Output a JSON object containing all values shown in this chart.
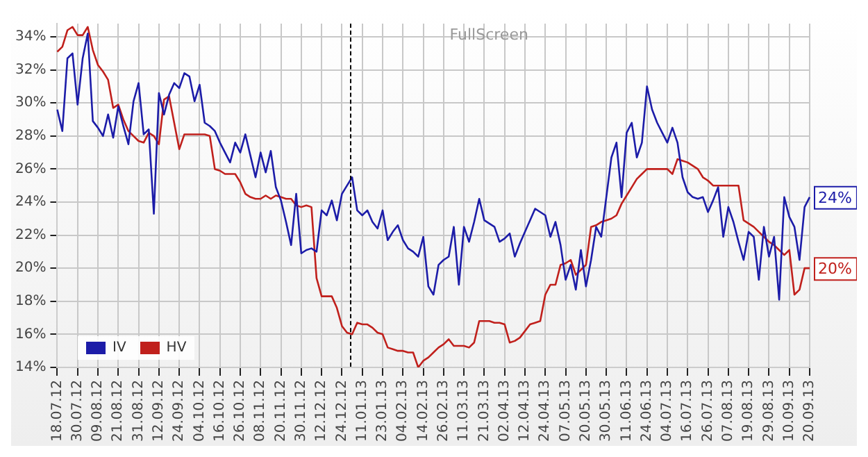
{
  "chart_data": {
    "type": "line",
    "categories": [
      "18.07.12",
      null,
      null,
      null,
      "30.07.12",
      null,
      null,
      null,
      "09.08.12",
      null,
      null,
      null,
      "21.08.12",
      null,
      null,
      null,
      "31.08.12",
      null,
      null,
      null,
      "12.09.12",
      null,
      null,
      null,
      "24.09.12",
      null,
      null,
      null,
      "04.10.12",
      null,
      null,
      null,
      "16.10.12",
      null,
      null,
      null,
      "26.10.12",
      null,
      null,
      null,
      "08.11.12",
      null,
      null,
      null,
      "20.11.12",
      null,
      null,
      null,
      "30.11.12",
      null,
      null,
      null,
      "12.12.12",
      null,
      null,
      null,
      "24.12.12",
      null,
      null,
      null,
      "11.01.13",
      null,
      null,
      null,
      "23.01.13",
      null,
      null,
      null,
      "04.02.13",
      null,
      null,
      null,
      "14.02.13",
      null,
      null,
      null,
      "26.02.13",
      null,
      null,
      null,
      "11.03.13",
      null,
      null,
      null,
      "21.03.13",
      null,
      null,
      null,
      "02.04.13",
      null,
      null,
      null,
      "12.04.13",
      null,
      null,
      null,
      "24.04.13",
      null,
      null,
      null,
      "07.05.13",
      null,
      null,
      null,
      "20.05.13",
      null,
      null,
      null,
      "30.05.13",
      null,
      null,
      null,
      "11.06.13",
      null,
      null,
      null,
      "24.06.13",
      null,
      null,
      null,
      "04.07.13",
      null,
      null,
      null,
      "16.07.13",
      null,
      null,
      null,
      "26.07.13",
      null,
      null,
      null,
      "07.08.13",
      null,
      null,
      null,
      "19.08.13",
      null,
      null,
      null,
      "29.08.13",
      null,
      null,
      null,
      "10.09.13",
      null,
      null,
      null,
      "20.09.13"
    ],
    "ylim": [
      14,
      34.8
    ],
    "yticks": [
      {
        "value": 14,
        "label": "14%"
      },
      {
        "value": 16,
        "label": "16%"
      },
      {
        "value": 18,
        "label": "18%"
      },
      {
        "value": 20,
        "label": "20%"
      },
      {
        "value": 22,
        "label": "22%"
      },
      {
        "value": 24,
        "label": "24%"
      },
      {
        "value": 26,
        "label": "26%"
      },
      {
        "value": 28,
        "label": "28%"
      },
      {
        "value": 30,
        "label": "30%"
      },
      {
        "value": 32,
        "label": "32%"
      },
      {
        "value": 34,
        "label": "34%"
      }
    ],
    "grid": true,
    "legend": "bottom left",
    "marker": "none",
    "line_style": "solid",
    "annotations": [
      "FullScreen",
      {
        "text": "24%",
        "x": "20.09.13",
        "y": 24.3
      },
      {
        "text": "20%",
        "x": "20.09.13",
        "y": 20.0
      }
    ],
    "series": [
      {
        "name": "IV",
        "color": "#1c1ca8",
        "values": [
          29.6,
          28.3,
          32.7,
          33.0,
          29.9,
          32.7,
          34.2,
          28.9,
          28.5,
          28.0,
          29.3,
          27.9,
          29.8,
          28.6,
          27.5,
          30.1,
          31.2,
          28.1,
          28.4,
          23.3,
          30.6,
          29.3,
          30.5,
          31.2,
          30.9,
          31.8,
          31.6,
          30.1,
          31.1,
          28.8,
          28.6,
          28.3,
          27.6,
          27.0,
          26.4,
          27.6,
          27.0,
          28.1,
          26.8,
          25.5,
          27.0,
          25.8,
          27.1,
          24.9,
          24.1,
          22.8,
          21.4,
          24.5,
          20.9,
          21.1,
          21.2,
          21.0,
          23.5,
          23.2,
          24.1,
          22.9,
          24.5,
          25.0,
          25.5,
          23.5,
          23.2,
          23.5,
          22.8,
          22.4,
          23.5,
          21.7,
          22.2,
          22.6,
          21.7,
          21.2,
          21.0,
          20.7,
          21.9,
          18.9,
          18.4,
          20.2,
          20.5,
          20.7,
          22.5,
          19.0,
          22.5,
          21.6,
          22.8,
          24.2,
          22.9,
          22.7,
          22.5,
          21.6,
          21.8,
          22.1,
          20.7,
          21.5,
          22.2,
          22.9,
          23.6,
          23.4,
          23.2,
          21.9,
          22.8,
          21.4,
          19.3,
          20.2,
          18.7,
          21.1,
          18.9,
          20.5,
          22.5,
          21.9,
          24.3,
          26.7,
          27.6,
          24.3,
          28.2,
          28.8,
          26.7,
          27.6,
          31.0,
          29.6,
          28.8,
          28.2,
          27.6,
          28.5,
          27.6,
          25.5,
          24.6,
          24.3,
          24.2,
          24.3,
          23.4,
          24.1,
          24.9,
          21.9,
          23.7,
          22.8,
          21.6,
          20.5,
          22.2,
          21.9,
          19.3,
          22.5,
          20.7,
          21.9,
          18.1,
          24.3,
          23.1,
          22.5,
          20.5,
          23.7,
          24.3
        ]
      },
      {
        "name": "HV",
        "color": "#c0201c",
        "values": [
          33.1,
          33.4,
          34.4,
          34.6,
          34.1,
          34.1,
          34.6,
          33.2,
          32.3,
          31.9,
          31.4,
          29.7,
          29.9,
          29.0,
          28.3,
          28.0,
          27.7,
          27.6,
          28.2,
          28.0,
          27.5,
          30.2,
          30.4,
          28.8,
          27.2,
          28.1,
          28.1,
          28.1,
          28.1,
          28.1,
          28.0,
          26.0,
          25.9,
          25.7,
          25.7,
          25.7,
          25.2,
          24.5,
          24.3,
          24.2,
          24.2,
          24.4,
          24.2,
          24.4,
          24.3,
          24.2,
          24.2,
          23.8,
          23.7,
          23.8,
          23.7,
          19.4,
          18.3,
          18.3,
          18.3,
          17.6,
          16.5,
          16.1,
          16.0,
          16.7,
          16.6,
          16.6,
          16.4,
          16.1,
          16.0,
          15.2,
          15.1,
          15.0,
          15.0,
          14.9,
          14.9,
          14.0,
          14.4,
          14.6,
          14.9,
          15.2,
          15.4,
          15.7,
          15.3,
          15.3,
          15.3,
          15.2,
          15.5,
          16.8,
          16.8,
          16.8,
          16.7,
          16.7,
          16.6,
          15.5,
          15.6,
          15.8,
          16.2,
          16.6,
          16.7,
          16.8,
          18.4,
          19.0,
          19.0,
          20.2,
          20.3,
          20.5,
          19.6,
          19.9,
          20.2,
          22.5,
          22.6,
          22.8,
          22.9,
          23.0,
          23.2,
          23.9,
          24.4,
          24.9,
          25.4,
          25.7,
          26.0,
          26.0,
          26.0,
          26.0,
          26.0,
          25.7,
          26.6,
          26.5,
          26.4,
          26.2,
          26.0,
          25.5,
          25.3,
          25.0,
          25.0,
          25.0,
          25.0,
          25.0,
          25.0,
          22.9,
          22.7,
          22.5,
          22.2,
          21.9,
          21.6,
          21.4,
          21.1,
          20.8,
          21.1,
          18.4,
          18.7,
          20.0,
          20.0
        ]
      }
    ]
  }
}
